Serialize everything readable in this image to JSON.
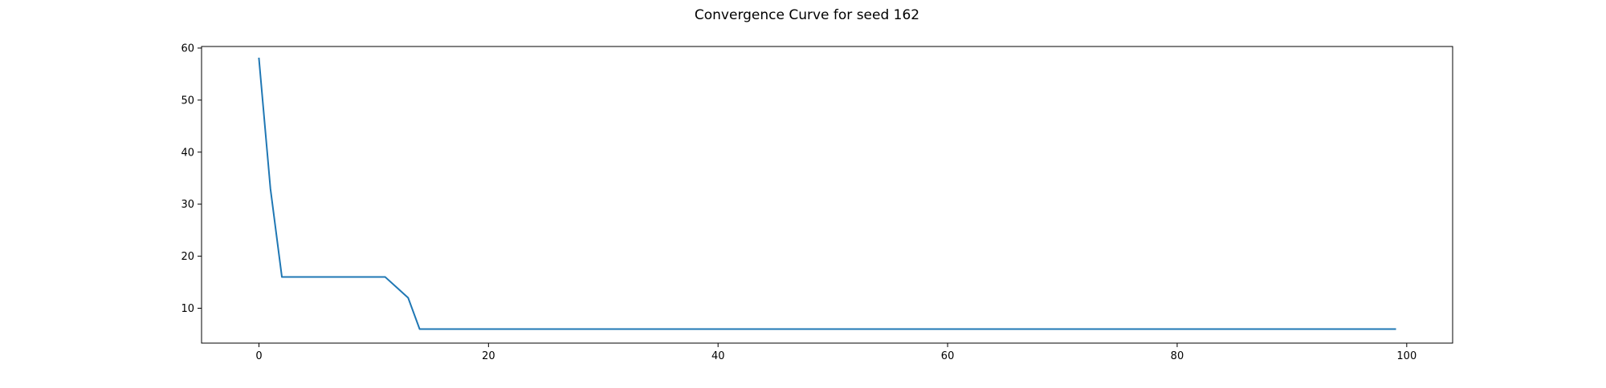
{
  "chart_data": {
    "type": "line",
    "title": "Convergence Curve for seed 162",
    "xlabel": "",
    "ylabel": "",
    "xlim": [
      -5,
      104
    ],
    "ylim": [
      3.3,
      60.3
    ],
    "xticks": [
      0,
      20,
      40,
      60,
      80,
      100
    ],
    "yticks": [
      10,
      20,
      30,
      40,
      50,
      60
    ],
    "grid": false,
    "legend": "none",
    "series": [
      {
        "color": "#1f77b4",
        "x": [
          0,
          1,
          2,
          3,
          4,
          5,
          6,
          7,
          8,
          9,
          10,
          11,
          12,
          13,
          14,
          15,
          16,
          17,
          18,
          19,
          20,
          21,
          22,
          23,
          24,
          25,
          26,
          27,
          28,
          29,
          30,
          31,
          32,
          33,
          34,
          35,
          36,
          37,
          38,
          39,
          40,
          41,
          42,
          43,
          44,
          45,
          46,
          47,
          48,
          49,
          50,
          51,
          52,
          53,
          54,
          55,
          56,
          57,
          58,
          59,
          60,
          61,
          62,
          63,
          64,
          65,
          66,
          67,
          68,
          69,
          70,
          71,
          72,
          73,
          74,
          75,
          76,
          77,
          78,
          79,
          80,
          81,
          82,
          83,
          84,
          85,
          86,
          87,
          88,
          89,
          90,
          91,
          92,
          93,
          94,
          95,
          96,
          97,
          98,
          99
        ],
        "y": [
          58,
          33,
          16,
          16,
          16,
          16,
          16,
          16,
          16,
          16,
          16,
          16,
          14,
          12,
          6,
          6,
          6,
          6,
          6,
          6,
          6,
          6,
          6,
          6,
          6,
          6,
          6,
          6,
          6,
          6,
          6,
          6,
          6,
          6,
          6,
          6,
          6,
          6,
          6,
          6,
          6,
          6,
          6,
          6,
          6,
          6,
          6,
          6,
          6,
          6,
          6,
          6,
          6,
          6,
          6,
          6,
          6,
          6,
          6,
          6,
          6,
          6,
          6,
          6,
          6,
          6,
          6,
          6,
          6,
          6,
          6,
          6,
          6,
          6,
          6,
          6,
          6,
          6,
          6,
          6,
          6,
          6,
          6,
          6,
          6,
          6,
          6,
          6,
          6,
          6,
          6,
          6,
          6,
          6,
          6,
          6,
          6,
          6,
          6,
          6
        ]
      }
    ]
  }
}
